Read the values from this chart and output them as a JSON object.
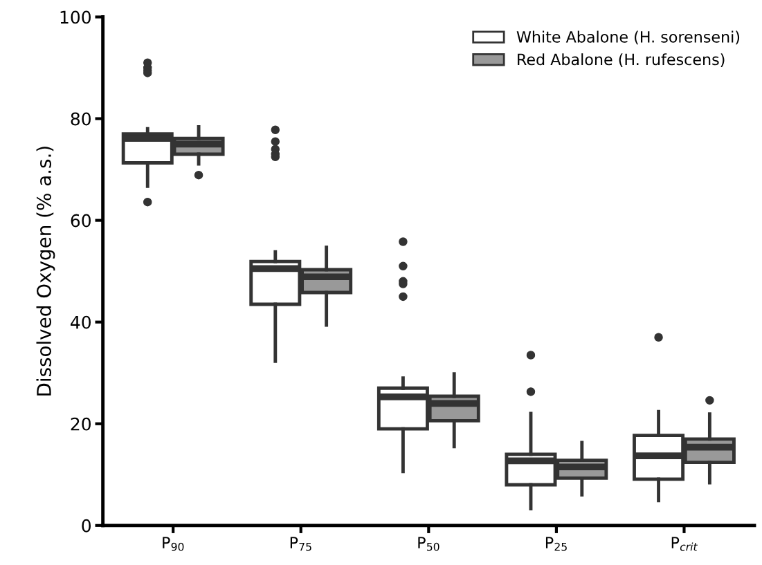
{
  "chart_data": {
    "type": "box",
    "ylabel": "Dissolved Oxygen (% a.s.)",
    "categories": [
      "P$_{90}$",
      "P$_{75}$",
      "P$_{50}$",
      "P$_{25}$",
      "P$_{crit}$"
    ],
    "ylim": [
      0,
      100
    ],
    "yticks": [
      0,
      20,
      40,
      60,
      80,
      100
    ],
    "grid": false,
    "legend": "top right",
    "series": [
      {
        "name": "White Abalone (H. sorenseni)",
        "color": "#ffffff",
        "boxes": [
          {
            "low": 66.7,
            "q1": 71.3,
            "median": 76.1,
            "q3": 77.0,
            "high": 78.0,
            "outliers": [
              91,
              90,
              89.5,
              89,
              63.6
            ]
          },
          {
            "low": 32.3,
            "q1": 43.5,
            "median": 50.5,
            "q3": 51.9,
            "high": 53.8,
            "outliers": [
              77.8,
              75.5,
              74,
              73,
              72.5
            ]
          },
          {
            "low": 10.6,
            "q1": 19.0,
            "median": 25.3,
            "q3": 27.0,
            "high": 29.0,
            "outliers": [
              55.8,
              51,
              48,
              47.5,
              45
            ]
          },
          {
            "low": 3.3,
            "q1": 8.0,
            "median": 12.7,
            "q3": 14.0,
            "high": 22.0,
            "outliers": [
              33.5,
              26.3
            ]
          },
          {
            "low": 4.9,
            "q1": 9.1,
            "median": 13.7,
            "q3": 17.7,
            "high": 22.4,
            "outliers": [
              37.0
            ]
          }
        ]
      },
      {
        "name": "Red Abalone (H. rufescens)",
        "color": "#999999",
        "boxes": [
          {
            "low": 71.1,
            "q1": 73.0,
            "median": 75.0,
            "q3": 76.1,
            "high": 78.4,
            "outliers": [
              68.9
            ]
          },
          {
            "low": 39.4,
            "q1": 45.8,
            "median": 48.9,
            "q3": 50.3,
            "high": 54.7
          },
          {
            "low": 15.5,
            "q1": 20.6,
            "median": 24.0,
            "q3": 25.4,
            "high": 29.8
          },
          {
            "low": 6.0,
            "q1": 9.3,
            "median": 11.5,
            "q3": 12.8,
            "high": 16.3
          },
          {
            "low": 8.4,
            "q1": 12.4,
            "median": 15.4,
            "q3": 17.0,
            "high": 21.9,
            "outliers": [
              24.6
            ]
          }
        ]
      }
    ]
  }
}
